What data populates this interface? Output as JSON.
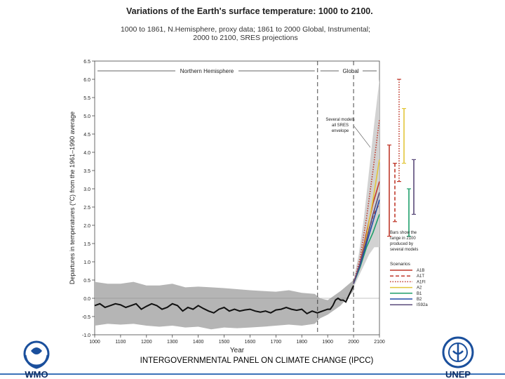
{
  "header": {
    "title": "Variations of the Earth's surface temperature: 1000 to 2100.",
    "subtitle_line1": "1000 to 1861, N.Hemisphere, proxy data; 1861 to 2000 Global, Instrumental;",
    "subtitle_line2": "2000 to 2100, SRES projections"
  },
  "footer": {
    "text": "INTERGOVERNMENTAL PANEL ON CLIMATE CHANGE (IPCC)",
    "wmo_logo_text": "WMO",
    "unep_logo_text": "UNEP"
  },
  "colors": {
    "accent": "#3b73b9",
    "uncertainty_band": "#b5b5b5",
    "envelope": "#d2d2d2",
    "observed_line": "#111111"
  },
  "chart_data": {
    "type": "line",
    "title": "Variations of the Earth's surface temperature: 1000 to 2100.",
    "xlabel": "Year",
    "ylabel": "Departures in temperatures (°C) from the 1961–1990 average",
    "xlim": [
      1000,
      2100
    ],
    "ylim": [
      -1.0,
      6.5
    ],
    "x_ticks": [
      1000,
      1100,
      1200,
      1300,
      1400,
      1500,
      1600,
      1700,
      1800,
      1900,
      2000,
      2100
    ],
    "y_ticks": [
      -1.0,
      -0.5,
      0.0,
      0.5,
      1.0,
      1.5,
      2.0,
      2.5,
      3.0,
      3.5,
      4.0,
      4.5,
      5.0,
      5.5,
      6.0,
      6.5
    ],
    "y_tick_labels": [
      "-1.0",
      "-0.5",
      "0.0",
      "0.5",
      "1.0",
      "1.5",
      "2.0",
      "2.5",
      "3.0",
      "3.5",
      "4.0",
      "4.5",
      "5.0",
      "5.5",
      "6.0",
      "6.5"
    ],
    "region_labels": [
      "Northern Hemisphere",
      "Global"
    ],
    "region_boundaries": [
      1861,
      2000
    ],
    "annotations": {
      "envelope_note": [
        "Several models",
        "all SRES",
        "envelope"
      ],
      "bars_note": [
        "Bars show the",
        "range in 2100",
        "produced by",
        "several models"
      ],
      "legend_title": "Scenarios"
    },
    "observed": {
      "x": [
        1000,
        1020,
        1040,
        1060,
        1080,
        1100,
        1120,
        1140,
        1160,
        1180,
        1200,
        1220,
        1240,
        1260,
        1280,
        1300,
        1320,
        1340,
        1360,
        1380,
        1400,
        1420,
        1440,
        1460,
        1480,
        1500,
        1520,
        1540,
        1560,
        1580,
        1600,
        1620,
        1640,
        1660,
        1680,
        1700,
        1720,
        1740,
        1760,
        1780,
        1800,
        1820,
        1840,
        1860,
        1880,
        1900,
        1910,
        1920,
        1930,
        1940,
        1950,
        1960,
        1970,
        1980,
        1990,
        2000
      ],
      "y": [
        -0.2,
        -0.15,
        -0.25,
        -0.2,
        -0.15,
        -0.18,
        -0.25,
        -0.2,
        -0.15,
        -0.3,
        -0.22,
        -0.15,
        -0.2,
        -0.3,
        -0.25,
        -0.15,
        -0.2,
        -0.35,
        -0.25,
        -0.3,
        -0.2,
        -0.28,
        -0.35,
        -0.4,
        -0.3,
        -0.25,
        -0.35,
        -0.3,
        -0.35,
        -0.32,
        -0.3,
        -0.35,
        -0.38,
        -0.35,
        -0.4,
        -0.32,
        -0.3,
        -0.25,
        -0.3,
        -0.33,
        -0.3,
        -0.42,
        -0.35,
        -0.4,
        -0.35,
        -0.3,
        -0.3,
        -0.2,
        -0.05,
        0.0,
        -0.05,
        -0.05,
        -0.1,
        0.05,
        0.2,
        0.35
      ]
    },
    "uncertainty_band": {
      "x": [
        1000,
        1050,
        1100,
        1150,
        1200,
        1250,
        1300,
        1350,
        1400,
        1450,
        1500,
        1550,
        1600,
        1650,
        1700,
        1750,
        1800,
        1850,
        1870,
        1900,
        1950,
        2000
      ],
      "lower": [
        -0.75,
        -0.7,
        -0.72,
        -0.7,
        -0.75,
        -0.78,
        -0.75,
        -0.8,
        -0.78,
        -0.85,
        -0.8,
        -0.82,
        -0.8,
        -0.78,
        -0.75,
        -0.72,
        -0.75,
        -0.7,
        -0.55,
        -0.45,
        -0.2,
        0.2
      ],
      "upper": [
        0.45,
        0.4,
        0.4,
        0.45,
        0.35,
        0.35,
        0.4,
        0.3,
        0.32,
        0.3,
        0.28,
        0.25,
        0.22,
        0.2,
        0.18,
        0.22,
        0.15,
        0.12,
        0.0,
        -0.05,
        0.2,
        0.5
      ]
    },
    "envelope": {
      "x": [
        2000,
        2020,
        2040,
        2060,
        2080,
        2100
      ],
      "lower": [
        0.3,
        0.6,
        0.9,
        1.2,
        1.4,
        1.4
      ],
      "upper": [
        0.5,
        1.2,
        2.2,
        3.5,
        4.8,
        6.0
      ]
    },
    "series": [
      {
        "name": "A1B",
        "color": "#c0392b",
        "style": "solid",
        "x": [
          2000,
          2025,
          2050,
          2075,
          2100
        ],
        "y": [
          0.4,
          0.95,
          1.8,
          2.6,
          3.2
        ]
      },
      {
        "name": "A1T",
        "color": "#c0392b",
        "style": "dashed",
        "x": [
          2000,
          2025,
          2050,
          2075,
          2100
        ],
        "y": [
          0.4,
          0.95,
          1.65,
          2.25,
          2.6
        ]
      },
      {
        "name": "A1FI",
        "color": "#c0392b",
        "style": "dotted",
        "x": [
          2000,
          2025,
          2050,
          2075,
          2100
        ],
        "y": [
          0.4,
          1.1,
          2.2,
          3.5,
          4.9
        ]
      },
      {
        "name": "A2",
        "color": "#e2c63a",
        "style": "solid",
        "x": [
          2000,
          2025,
          2050,
          2075,
          2100
        ],
        "y": [
          0.4,
          0.9,
          1.7,
          2.7,
          3.8
        ]
      },
      {
        "name": "B1",
        "color": "#1e9e6a",
        "style": "solid",
        "x": [
          2000,
          2025,
          2050,
          2075,
          2100
        ],
        "y": [
          0.4,
          0.85,
          1.4,
          1.8,
          2.3
        ]
      },
      {
        "name": "B2",
        "color": "#1f4aa8",
        "style": "solid",
        "x": [
          2000,
          2025,
          2050,
          2075,
          2100
        ],
        "y": [
          0.4,
          0.9,
          1.5,
          2.1,
          2.7
        ]
      },
      {
        "name": "IS92a",
        "color": "#5a4a7a",
        "style": "solid",
        "x": [
          2000,
          2025,
          2050,
          2075,
          2100
        ],
        "y": [
          0.4,
          0.95,
          1.6,
          2.3,
          2.9
        ]
      }
    ],
    "range_bars_2100": [
      {
        "name": "A1B",
        "color": "#c0392b",
        "style": "solid",
        "low": 1.7,
        "high": 4.2
      },
      {
        "name": "A1T",
        "color": "#c0392b",
        "style": "dashed",
        "low": 2.1,
        "high": 3.7
      },
      {
        "name": "A1FI",
        "color": "#c0392b",
        "style": "dotted",
        "low": 3.2,
        "high": 6.0
      },
      {
        "name": "A2",
        "color": "#e2c63a",
        "style": "solid",
        "low": 3.7,
        "high": 5.2
      },
      {
        "name": "B1",
        "color": "#1e9e6a",
        "style": "solid",
        "low": 1.7,
        "high": 3.0
      },
      {
        "name": "IS92a",
        "color": "#5a4a7a",
        "style": "solid",
        "low": 2.3,
        "high": 3.8
      }
    ],
    "legend_placement": "bottom-right",
    "grid": false
  }
}
